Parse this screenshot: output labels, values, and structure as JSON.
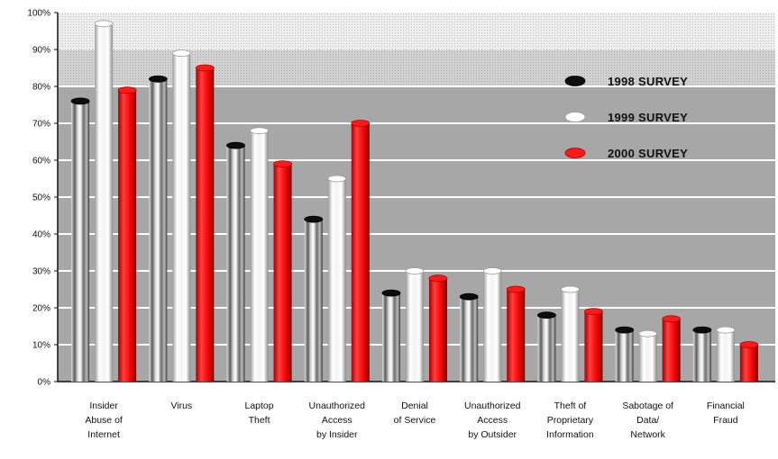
{
  "chart_data": {
    "type": "bar",
    "title": "",
    "xlabel": "",
    "ylabel": "",
    "ylim": [
      0,
      100
    ],
    "yticks": [
      0,
      10,
      20,
      30,
      40,
      50,
      60,
      70,
      80,
      90,
      100
    ],
    "ytick_labels": [
      "0%",
      "10%",
      "20%",
      "30%",
      "40%",
      "50%",
      "60%",
      "70%",
      "80%",
      "90%",
      "100%"
    ],
    "grid": true,
    "legend_position": "top-right",
    "categories": [
      [
        "Insider",
        "Abuse of",
        "Internet"
      ],
      [
        "Virus"
      ],
      [
        "Laptop",
        "Theft"
      ],
      [
        "Unauthorized",
        "Access",
        "by Insider"
      ],
      [
        "Denial",
        "of Service"
      ],
      [
        "Unauthorized",
        "Access",
        "by Outsider"
      ],
      [
        "Theft of",
        "Proprietary",
        "Information"
      ],
      [
        "Sabotage of",
        "Data/",
        "Network"
      ],
      [
        "Financial",
        "Fraud"
      ]
    ],
    "series": [
      {
        "name": "1998 SURVEY",
        "color": "#111111",
        "values": [
          76,
          82,
          64,
          44,
          24,
          23,
          18,
          14,
          14
        ]
      },
      {
        "name": "1999 SURVEY",
        "color": "#f4f4f4",
        "values": [
          97,
          89,
          68,
          55,
          30,
          30,
          25,
          13,
          14
        ]
      },
      {
        "name": "2000 SURVEY",
        "color": "#ee1111",
        "values": [
          79,
          85,
          59,
          70,
          28,
          25,
          19,
          17,
          10
        ]
      }
    ]
  }
}
